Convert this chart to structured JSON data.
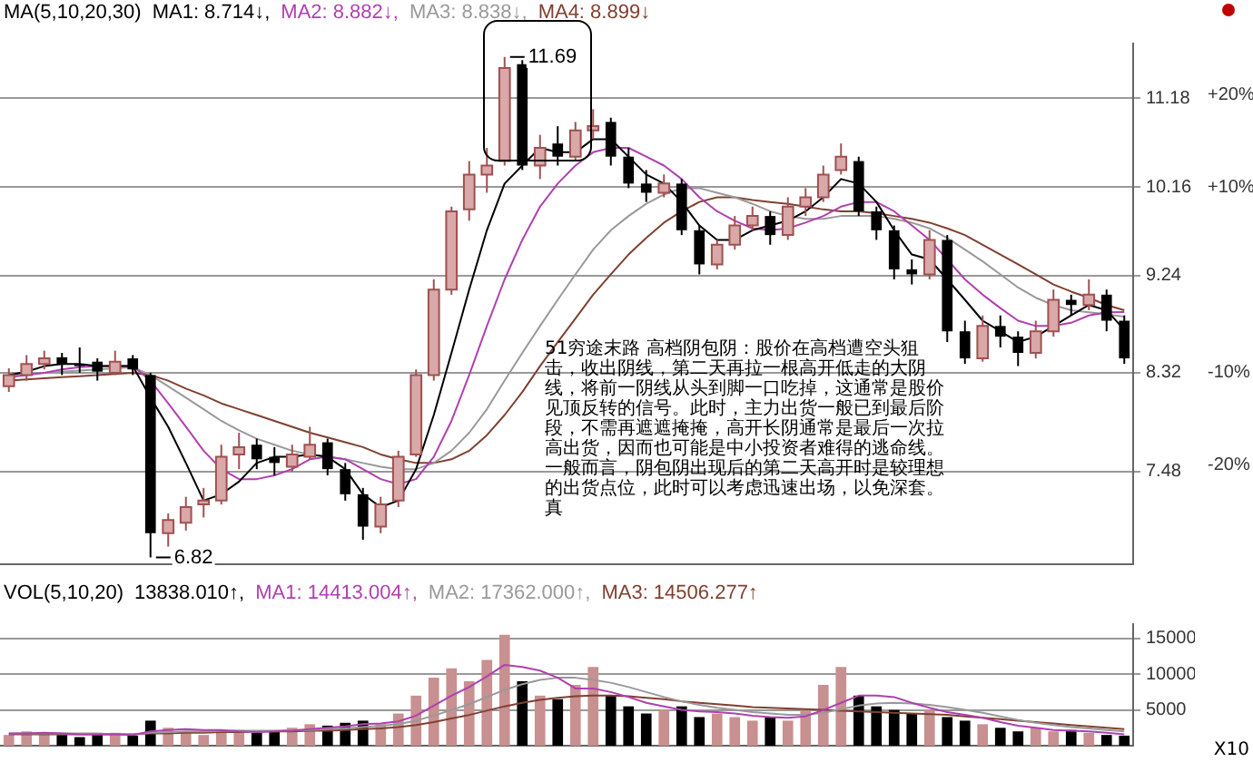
{
  "chart_data": [
    {
      "type": "candlestick",
      "legend_title": "MA(5,10,20,30)",
      "legend": "top left",
      "log": "y",
      "grid": "y",
      "tick_labels": "y",
      "categories": [
        null,
        null,
        null,
        null,
        null,
        null,
        null,
        null,
        null,
        null,
        null,
        null,
        null,
        null,
        null,
        null,
        null,
        null,
        null,
        null,
        null,
        null,
        null,
        null,
        null,
        null,
        null,
        null,
        null,
        null,
        null,
        null,
        null,
        null,
        null,
        null,
        null,
        null,
        null,
        null,
        null,
        null,
        null,
        null,
        null,
        null,
        null,
        null,
        null,
        null,
        null,
        null,
        null,
        null,
        null,
        null,
        null,
        null,
        null,
        null,
        null,
        null,
        null,
        null
      ],
      "ylim": [
        6.77,
        11.86
      ],
      "yticks": [
        7.48,
        8.32,
        9.24,
        10.16,
        11.18
      ],
      "y2lim": [
        -30.7,
        25.5
      ],
      "y2ticks": [
        {
          "value": -20,
          "label": "-20%"
        },
        {
          "value": -10,
          "label": "-10%"
        },
        {
          "value": 10,
          "label": "+10%"
        },
        {
          "value": 20,
          "label": "+20%"
        }
      ],
      "ohlc": [
        [
          8.2,
          8.36,
          8.15,
          8.3
        ],
        [
          8.3,
          8.48,
          8.25,
          8.4
        ],
        [
          8.4,
          8.52,
          8.35,
          8.45
        ],
        [
          8.46,
          8.5,
          8.3,
          8.4
        ],
        [
          8.4,
          8.55,
          8.32,
          8.38
        ],
        [
          8.42,
          8.45,
          8.25,
          8.33
        ],
        [
          8.32,
          8.52,
          8.3,
          8.42
        ],
        [
          8.45,
          8.48,
          8.3,
          8.35
        ],
        [
          8.3,
          8.32,
          6.82,
          7.0
        ],
        [
          7.0,
          7.15,
          6.9,
          7.1
        ],
        [
          7.08,
          7.28,
          7.02,
          7.2
        ],
        [
          7.22,
          7.35,
          7.12,
          7.25
        ],
        [
          7.25,
          7.7,
          7.22,
          7.6
        ],
        [
          7.62,
          7.8,
          7.5,
          7.68
        ],
        [
          7.7,
          7.75,
          7.5,
          7.58
        ],
        [
          7.6,
          7.68,
          7.45,
          7.55
        ],
        [
          7.52,
          7.7,
          7.48,
          7.62
        ],
        [
          7.6,
          7.85,
          7.58,
          7.7
        ],
        [
          7.72,
          7.75,
          7.45,
          7.5
        ],
        [
          7.5,
          7.55,
          7.25,
          7.3
        ],
        [
          7.3,
          7.35,
          6.95,
          7.05
        ],
        [
          7.05,
          7.28,
          7.0,
          7.22
        ],
        [
          7.25,
          7.65,
          7.2,
          7.6
        ],
        [
          7.62,
          8.35,
          7.6,
          8.3
        ],
        [
          8.3,
          9.2,
          8.25,
          9.1
        ],
        [
          9.1,
          9.95,
          9.05,
          9.9
        ],
        [
          9.92,
          10.45,
          9.8,
          10.3
        ],
        [
          10.3,
          10.6,
          10.1,
          10.4
        ],
        [
          10.45,
          11.69,
          10.4,
          11.55
        ],
        [
          11.6,
          11.65,
          10.35,
          10.4
        ],
        [
          10.4,
          10.75,
          10.25,
          10.6
        ],
        [
          10.65,
          10.85,
          10.4,
          10.5
        ],
        [
          10.5,
          10.9,
          10.45,
          10.8
        ],
        [
          10.8,
          11.05,
          10.7,
          10.85
        ],
        [
          10.9,
          10.95,
          10.4,
          10.5
        ],
        [
          10.5,
          10.6,
          10.15,
          10.2
        ],
        [
          10.2,
          10.35,
          10.0,
          10.1
        ],
        [
          10.1,
          10.3,
          10.05,
          10.2
        ],
        [
          10.2,
          10.25,
          9.65,
          9.7
        ],
        [
          9.7,
          9.75,
          9.25,
          9.35
        ],
        [
          9.35,
          9.6,
          9.3,
          9.55
        ],
        [
          9.55,
          9.85,
          9.5,
          9.75
        ],
        [
          9.75,
          9.95,
          9.7,
          9.85
        ],
        [
          9.85,
          9.9,
          9.55,
          9.65
        ],
        [
          9.65,
          10.05,
          9.6,
          9.95
        ],
        [
          9.95,
          10.15,
          9.85,
          10.05
        ],
        [
          10.05,
          10.4,
          10.0,
          10.3
        ],
        [
          10.35,
          10.65,
          10.3,
          10.5
        ],
        [
          10.45,
          10.5,
          9.85,
          9.9
        ],
        [
          9.9,
          9.95,
          9.6,
          9.7
        ],
        [
          9.7,
          9.75,
          9.2,
          9.3
        ],
        [
          9.3,
          9.4,
          9.15,
          9.25
        ],
        [
          9.25,
          9.7,
          9.2,
          9.6
        ],
        [
          9.6,
          9.65,
          8.6,
          8.7
        ],
        [
          8.7,
          8.8,
          8.4,
          8.45
        ],
        [
          8.45,
          8.85,
          8.42,
          8.75
        ],
        [
          8.75,
          8.85,
          8.55,
          8.65
        ],
        [
          8.65,
          8.7,
          8.38,
          8.5
        ],
        [
          8.5,
          8.8,
          8.45,
          8.7
        ],
        [
          8.7,
          9.1,
          8.65,
          9.0
        ],
        [
          9.0,
          9.05,
          8.85,
          8.95
        ],
        [
          8.95,
          9.2,
          8.9,
          9.05
        ],
        [
          9.05,
          9.1,
          8.7,
          8.8
        ],
        [
          8.8,
          8.85,
          8.4,
          8.45
        ]
      ],
      "series": [
        {
          "name": "MA1: 8.714↓,",
          "type": "line",
          "color": "#000000",
          "values": [
            8.3,
            8.33,
            8.38,
            8.4,
            8.4,
            8.38,
            8.38,
            8.38,
            8.1,
            7.85,
            7.55,
            7.25,
            7.3,
            7.4,
            7.55,
            7.6,
            7.6,
            7.62,
            7.6,
            7.5,
            7.3,
            7.2,
            7.25,
            7.5,
            7.95,
            8.5,
            9.1,
            9.7,
            10.2,
            10.4,
            10.6,
            10.55,
            10.55,
            10.7,
            10.7,
            10.5,
            10.3,
            10.2,
            10.0,
            9.75,
            9.6,
            9.6,
            9.7,
            9.75,
            9.8,
            9.9,
            10.05,
            10.25,
            10.2,
            10.0,
            9.7,
            9.45,
            9.4,
            9.2,
            9.0,
            8.8,
            8.7,
            8.6,
            8.65,
            8.75,
            8.85,
            8.95,
            8.9,
            8.714
          ]
        },
        {
          "name": "MA2: 8.882↓,",
          "type": "line",
          "color": "#b040b0",
          "values": [
            8.28,
            8.3,
            8.32,
            8.35,
            8.37,
            8.38,
            8.38,
            8.38,
            8.25,
            8.05,
            7.85,
            7.65,
            7.5,
            7.42,
            7.42,
            7.45,
            7.5,
            7.58,
            7.6,
            7.58,
            7.5,
            7.42,
            7.38,
            7.42,
            7.6,
            7.9,
            8.3,
            8.75,
            9.2,
            9.6,
            9.95,
            10.2,
            10.4,
            10.55,
            10.6,
            10.6,
            10.5,
            10.4,
            10.25,
            10.05,
            9.9,
            9.8,
            9.72,
            9.7,
            9.72,
            9.78,
            9.85,
            9.95,
            10.0,
            10.0,
            9.9,
            9.75,
            9.6,
            9.4,
            9.2,
            9.05,
            8.92,
            8.8,
            8.75,
            8.75,
            8.78,
            8.85,
            8.88,
            8.882
          ]
        },
        {
          "name": "MA3: 8.838↓,",
          "type": "line",
          "color": "#999999",
          "values": [
            8.3,
            8.31,
            8.32,
            8.33,
            8.34,
            8.35,
            8.36,
            8.37,
            8.3,
            8.2,
            8.1,
            8.0,
            7.9,
            7.82,
            7.75,
            7.7,
            7.65,
            7.62,
            7.6,
            7.58,
            7.55,
            7.52,
            7.5,
            7.5,
            7.55,
            7.65,
            7.8,
            8.0,
            8.25,
            8.5,
            8.75,
            9.0,
            9.25,
            9.5,
            9.7,
            9.85,
            9.98,
            10.08,
            10.15,
            10.15,
            10.1,
            10.05,
            9.98,
            9.9,
            9.85,
            9.82,
            9.82,
            9.85,
            9.85,
            9.85,
            9.82,
            9.78,
            9.72,
            9.62,
            9.5,
            9.38,
            9.25,
            9.12,
            9.02,
            8.95,
            8.9,
            8.88,
            8.86,
            8.838
          ]
        },
        {
          "name": "MA4: 8.899↓",
          "type": "line",
          "color": "#804030",
          "values": [
            8.25,
            8.26,
            8.27,
            8.28,
            8.29,
            8.3,
            8.31,
            8.32,
            8.3,
            8.25,
            8.18,
            8.12,
            8.05,
            8.0,
            7.95,
            7.9,
            7.85,
            7.8,
            7.76,
            7.72,
            7.68,
            7.62,
            7.58,
            7.55,
            7.55,
            7.58,
            7.65,
            7.78,
            7.95,
            8.15,
            8.38,
            8.6,
            8.82,
            9.05,
            9.25,
            9.45,
            9.62,
            9.78,
            9.9,
            10.0,
            10.05,
            10.05,
            10.02,
            10.0,
            9.98,
            9.95,
            9.92,
            9.9,
            9.9,
            9.88,
            9.85,
            9.82,
            9.78,
            9.72,
            9.65,
            9.55,
            9.45,
            9.35,
            9.25,
            9.15,
            9.08,
            9.02,
            8.95,
            8.899
          ]
        }
      ],
      "annotations": [
        "11.69",
        "6.82",
        "51穷途末路 高档阴包阴：股价在高档遭空头狙击，收出阴线，第二天再拉一根高开低走的大阴线，将前一阴线从头到脚一口吃掉，这通常是股价见顶反转的信号。此时，主力出货一般已到最后阶段，不需再遮遮掩掩，高开长阴通常是最后一次拉高出货，因而也可能是中小投资者难得的逃命线。一般而言，阴包阴出现后的第二天高开时是较理想的出货点位，此时可以考虑迅速出场，以免深套。真"
      ]
    },
    {
      "type": "bar",
      "legend_title": "VOL(5,10,20)",
      "legend": "top left",
      "grid": "y",
      "tick_labels": "y",
      "categories": [
        null,
        null,
        null,
        null,
        null,
        null,
        null,
        null,
        null,
        null,
        null,
        null,
        null,
        null,
        null,
        null,
        null,
        null,
        null,
        null,
        null,
        null,
        null,
        null,
        null,
        null,
        null,
        null,
        null,
        null,
        null,
        null,
        null,
        null,
        null,
        null,
        null,
        null,
        null,
        null,
        null,
        null,
        null,
        null,
        null,
        null,
        null,
        null,
        null,
        null,
        null,
        null,
        null,
        null,
        null,
        null,
        null,
        null,
        null,
        null,
        null,
        null,
        null,
        null
      ],
      "ylim": [
        0,
        17000
      ],
      "yticks": [
        5000,
        10000,
        15000
      ],
      "series": [
        {
          "name": "13838.010↑,",
          "color": "#000000",
          "values": [
            1500,
            2000,
            1800,
            1500,
            1200,
            1500,
            1800,
            1400,
            3500,
            2500,
            1800,
            1500,
            2000,
            2200,
            1800,
            2000,
            2500,
            3000,
            2800,
            3200,
            3500,
            3000,
            4500,
            7000,
            9500,
            10800,
            9000,
            12000,
            15500,
            9000,
            7000,
            6500,
            8500,
            11000,
            7000,
            5500,
            4500,
            5000,
            5500,
            4000,
            4500,
            4000,
            3500,
            4000,
            3500,
            5000,
            8500,
            11000,
            7000,
            5500,
            5000,
            4500,
            5000,
            4000,
            3500,
            3000,
            2500,
            2000,
            2500,
            2000,
            2200,
            1800,
            1500,
            1400
          ],
          "colors": [
            "#c89090",
            "#c89090",
            "#c89090",
            "#000000",
            "#000000",
            "#000000",
            "#c89090",
            "#000000",
            "#000000",
            "#c89090",
            "#c89090",
            "#c89090",
            "#c89090",
            "#c89090",
            "#000000",
            "#000000",
            "#c89090",
            "#c89090",
            "#000000",
            "#000000",
            "#000000",
            "#c89090",
            "#c89090",
            "#c89090",
            "#c89090",
            "#c89090",
            "#c89090",
            "#c89090",
            "#c89090",
            "#000000",
            "#c89090",
            "#000000",
            "#c89090",
            "#c89090",
            "#000000",
            "#000000",
            "#000000",
            "#c89090",
            "#000000",
            "#000000",
            "#c89090",
            "#c89090",
            "#c89090",
            "#000000",
            "#c89090",
            "#c89090",
            "#c89090",
            "#c89090",
            "#000000",
            "#000000",
            "#000000",
            "#000000",
            "#c89090",
            "#000000",
            "#000000",
            "#c89090",
            "#000000",
            "#000000",
            "#c89090",
            "#c89090",
            "#000000",
            "#c89090",
            "#000000",
            "#000000"
          ]
        },
        {
          "name": "MA1: 14413.004↑,",
          "type": "line",
          "color": "#b040b0",
          "values": [
            1700,
            1700,
            1800,
            1700,
            1600,
            1600,
            1600,
            1500,
            2000,
            2200,
            2300,
            2200,
            2200,
            2000,
            1900,
            2000,
            2100,
            2300,
            2500,
            2700,
            3000,
            3100,
            3400,
            4200,
            5600,
            7000,
            8200,
            9700,
            11300,
            11000,
            10500,
            9500,
            8000,
            8000,
            7500,
            6800,
            6000,
            5500,
            5000,
            4800,
            4700,
            4500,
            4200,
            4000,
            3900,
            4100,
            5000,
            6000,
            7000,
            7000,
            6800,
            6000,
            5300,
            4700,
            4300,
            3900,
            3300,
            2800,
            2500,
            2200,
            2100,
            2000,
            1800,
            1600
          ]
        },
        {
          "name": "MA2: 17362.000↑,",
          "type": "line",
          "color": "#999999",
          "values": [
            1700,
            1700,
            1700,
            1700,
            1700,
            1700,
            1600,
            1600,
            1800,
            1900,
            2000,
            2000,
            2100,
            2100,
            2100,
            2100,
            2200,
            2200,
            2300,
            2400,
            2600,
            2800,
            3000,
            3500,
            4200,
            5000,
            5800,
            6800,
            7800,
            8600,
            9200,
            9500,
            9500,
            9200,
            8800,
            8200,
            7500,
            6800,
            6200,
            5700,
            5300,
            5000,
            4700,
            4500,
            4300,
            4300,
            4600,
            5100,
            5600,
            5900,
            6000,
            5900,
            5700,
            5400,
            5000,
            4600,
            4100,
            3600,
            3200,
            2900,
            2600,
            2400,
            2200,
            2000
          ]
        },
        {
          "name": "MA3: 14506.277↑",
          "type": "line",
          "color": "#804030",
          "values": [
            1600,
            1600,
            1600,
            1600,
            1600,
            1600,
            1600,
            1600,
            1700,
            1700,
            1800,
            1800,
            1900,
            1900,
            2000,
            2000,
            2000,
            2100,
            2100,
            2200,
            2300,
            2400,
            2600,
            2900,
            3300,
            3800,
            4300,
            4900,
            5500,
            6000,
            6400,
            6700,
            6900,
            7000,
            7000,
            6900,
            6700,
            6500,
            6200,
            6000,
            5800,
            5600,
            5400,
            5300,
            5200,
            5100,
            5000,
            4900,
            4800,
            4700,
            4600,
            4500,
            4400,
            4300,
            4100,
            3900,
            3700,
            3500,
            3300,
            3100,
            2900,
            2700,
            2500,
            2300
          ]
        }
      ],
      "annotations": [
        "X10"
      ]
    }
  ]
}
